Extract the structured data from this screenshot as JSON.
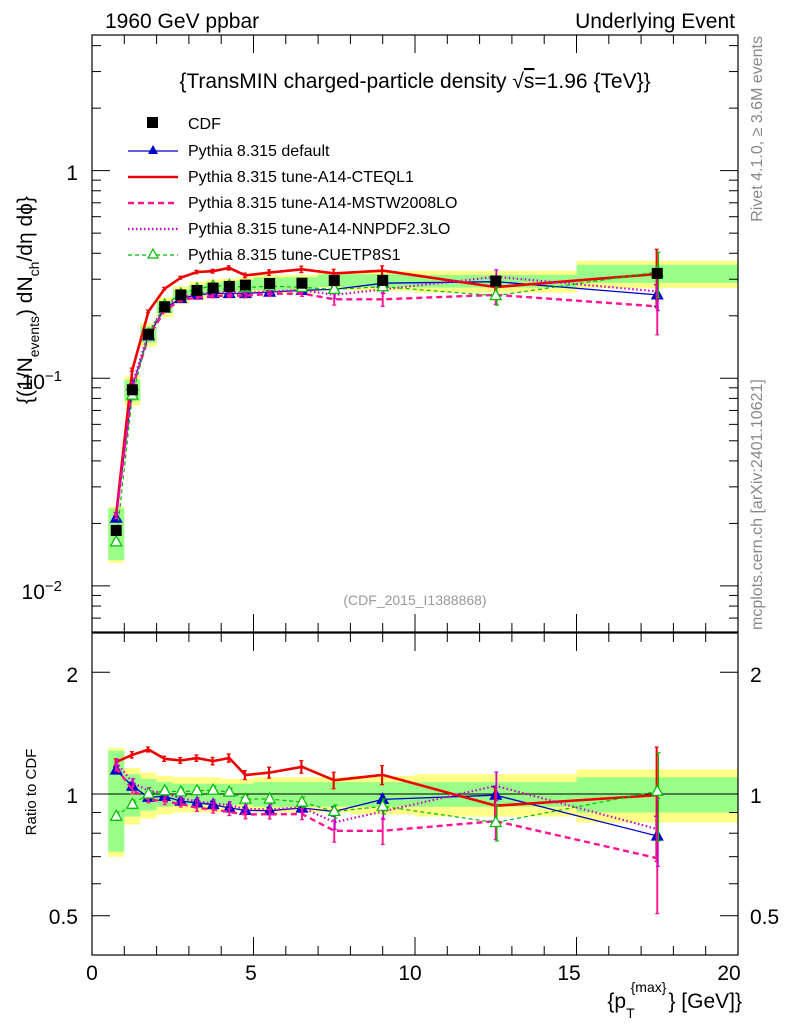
{
  "header": {
    "left": "1960 GeV ppbar",
    "right": "Underlying Event"
  },
  "plot_title": {
    "prefix": "{TransMIN charged-particle density ",
    "sqrt_s": "s",
    "suffix": "=1.96 {TeV}}"
  },
  "side_labels": {
    "rivet": "Rivet 4.1.0, ≥ 3.6M events",
    "mcplots": "mcplots.cern.ch [arXiv:2401.10621]"
  },
  "analysis_tag": "(CDF_2015_I1388868)",
  "axes": {
    "ylabel_main": "{(1/N_events) dN_ch/dη dϕ}",
    "ylabel_main_parts": {
      "a": "{(1/N",
      "b": "events",
      "c": ") dN",
      "d": "ch",
      "e": "/dη  dϕ}"
    },
    "ylabel_ratio": "Ratio to CDF",
    "xlabel_parts": {
      "a": "{p",
      "b": "T",
      "c": "{max}",
      "d": "} [GeV]}"
    },
    "x_ticks": [
      "0",
      "5",
      "10",
      "15",
      "20"
    ],
    "main_y_ticks": {
      "one": "1",
      "tenth_base": "10",
      "tenth_exp": "−1",
      "hundredth_base": "10",
      "hundredth_exp": "−2"
    },
    "ratio_y_ticks": [
      "2",
      "1",
      "0.5"
    ]
  },
  "legend": [
    {
      "label": "CDF",
      "color": "#000000"
    },
    {
      "label": "Pythia 8.315 default",
      "color": "#0000cc"
    },
    {
      "label": "Pythia 8.315 tune-A14-CTEQL1",
      "color": "#ee0000"
    },
    {
      "label": "Pythia 8.315 tune-A14-MSTW2008LO",
      "color": "#ff1493"
    },
    {
      "label": "Pythia 8.315 tune-A14-NNPDF2.3LO",
      "color": "#cc00cc"
    },
    {
      "label": "Pythia 8.315 tune-CUETP8S1",
      "color": "#00bb00"
    }
  ],
  "chart_data": {
    "type": "line",
    "title": "TransMIN charged-particle density sqrt(s)=1.96 TeV",
    "xlabel": "pT max [GeV]",
    "ylabel": "(1/N_events) dN_ch/deta dphi",
    "xlim": [
      0,
      20
    ],
    "ylim_main": [
      0.006,
      4.5
    ],
    "ylim_ratio": [
      0.4,
      2.5
    ],
    "x": [
      0.75,
      1.25,
      1.75,
      2.25,
      2.75,
      3.25,
      3.75,
      4.25,
      4.75,
      5.5,
      6.5,
      7.5,
      9.0,
      12.5,
      17.5
    ],
    "data": {
      "name": "CDF",
      "values": [
        0.0185,
        0.088,
        0.163,
        0.221,
        0.252,
        0.265,
        0.272,
        0.277,
        0.281,
        0.286,
        0.287,
        0.296,
        0.296,
        0.294,
        0.32
      ],
      "band_x": [
        0.5,
        1.0,
        1.5,
        2.0,
        2.5,
        3.0,
        3.5,
        4.0,
        4.5,
        5.0,
        6.0,
        7.0,
        8.0,
        10.0,
        15.0,
        20.0
      ],
      "band_inner": [
        0.28,
        0.12,
        0.09,
        0.07,
        0.06,
        0.06,
        0.06,
        0.06,
        0.06,
        0.07,
        0.07,
        0.07,
        0.07,
        0.07,
        0.1
      ],
      "band_outer": [
        0.3,
        0.16,
        0.13,
        0.11,
        0.1,
        0.1,
        0.1,
        0.09,
        0.09,
        0.1,
        0.1,
        0.1,
        0.11,
        0.12,
        0.15
      ]
    },
    "series": [
      {
        "name": "Pythia 8.315 default",
        "style": "solid",
        "marker": "filled-triangle",
        "values": [
          0.0212,
          0.092,
          0.16,
          0.218,
          0.242,
          0.252,
          0.256,
          0.256,
          0.256,
          0.26,
          0.265,
          0.268,
          0.287,
          0.292,
          0.252
        ],
        "errors": [
          0.0004,
          0.002,
          0.003,
          0.004,
          0.004,
          0.004,
          0.005,
          0.005,
          0.005,
          0.005,
          0.006,
          0.007,
          0.008,
          0.015,
          0.03
        ]
      },
      {
        "name": "Pythia 8.315 tune-A14-CTEQL1",
        "style": "solid-thick",
        "marker": "none",
        "values": [
          0.0222,
          0.11,
          0.21,
          0.27,
          0.305,
          0.325,
          0.328,
          0.34,
          0.313,
          0.323,
          0.335,
          0.32,
          0.33,
          0.275,
          0.318
        ],
        "errors": [
          0.0004,
          0.002,
          0.003,
          0.004,
          0.005,
          0.006,
          0.007,
          0.008,
          0.008,
          0.01,
          0.012,
          0.015,
          0.018,
          0.03,
          0.1
        ]
      },
      {
        "name": "Pythia 8.315 tune-A14-MSTW2008LO",
        "style": "dashed",
        "marker": "none",
        "values": [
          0.0215,
          0.09,
          0.158,
          0.212,
          0.238,
          0.245,
          0.249,
          0.25,
          0.25,
          0.255,
          0.256,
          0.24,
          0.24,
          0.252,
          0.222
        ],
        "errors": [
          0.0004,
          0.002,
          0.003,
          0.004,
          0.004,
          0.005,
          0.005,
          0.005,
          0.006,
          0.007,
          0.008,
          0.015,
          0.018,
          0.025,
          0.06
        ]
      },
      {
        "name": "Pythia 8.315 tune-A14-NNPDF2.3LO",
        "style": "dotted",
        "marker": "none",
        "values": [
          0.0222,
          0.094,
          0.166,
          0.222,
          0.246,
          0.254,
          0.258,
          0.26,
          0.258,
          0.262,
          0.266,
          0.252,
          0.268,
          0.308,
          0.262
        ],
        "errors": [
          0.0004,
          0.002,
          0.003,
          0.004,
          0.004,
          0.005,
          0.005,
          0.005,
          0.006,
          0.007,
          0.008,
          0.01,
          0.012,
          0.025,
          0.05
        ]
      },
      {
        "name": "Pythia 8.315 tune-CUETP8S1",
        "style": "dashed-thin",
        "marker": "open-triangle",
        "values": [
          0.0163,
          0.083,
          0.163,
          0.225,
          0.255,
          0.27,
          0.278,
          0.28,
          0.273,
          0.278,
          0.274,
          0.268,
          0.276,
          0.25,
          0.325
        ],
        "errors": [
          0.0004,
          0.002,
          0.003,
          0.004,
          0.005,
          0.005,
          0.006,
          0.006,
          0.006,
          0.007,
          0.008,
          0.01,
          0.012,
          0.025,
          0.08
        ]
      }
    ]
  }
}
